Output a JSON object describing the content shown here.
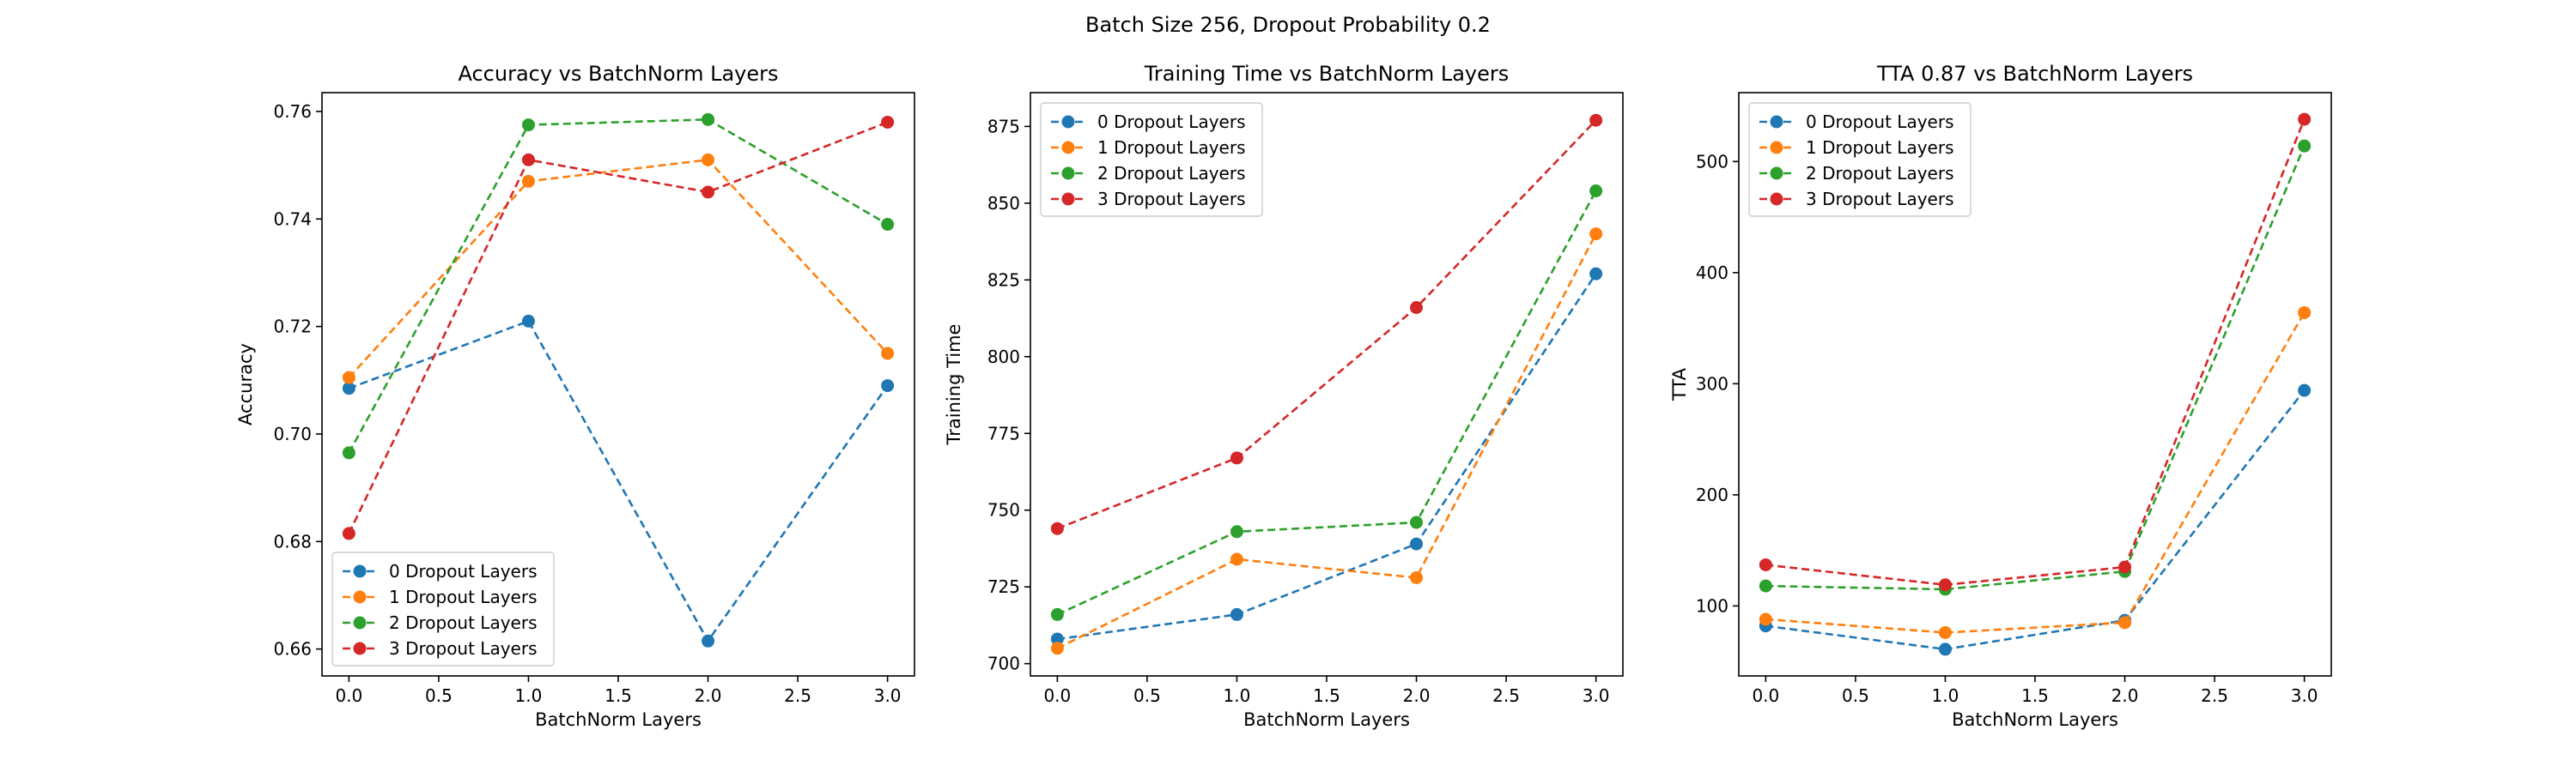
{
  "figure": {
    "suptitle": "Batch Size 256, Dropout Probability 0.2"
  },
  "series_colors": [
    "#1f77b4",
    "#ff7f0e",
    "#2ca02c",
    "#d62728"
  ],
  "chart_data": [
    {
      "type": "line",
      "title": "Accuracy vs BatchNorm Layers",
      "xlabel": "BatchNorm Layers",
      "ylabel": "Accuracy",
      "x": [
        0.0,
        1.0,
        2.0,
        3.0
      ],
      "xlim": [
        -0.15,
        3.15
      ],
      "ylim": [
        0.655,
        0.7635
      ],
      "xticks": [
        0.0,
        0.5,
        1.0,
        1.5,
        2.0,
        2.5,
        3.0
      ],
      "xtick_labels": [
        "0.0",
        "0.5",
        "1.0",
        "1.5",
        "2.0",
        "2.5",
        "3.0"
      ],
      "yticks": [
        0.66,
        0.68,
        0.7,
        0.72,
        0.74,
        0.76
      ],
      "ytick_labels": [
        "0.66",
        "0.68",
        "0.70",
        "0.72",
        "0.74",
        "0.76"
      ],
      "grid": false,
      "legend_position": "lower-left",
      "series": [
        {
          "name": "0 Dropout Layers",
          "values": [
            0.7085,
            0.721,
            0.6615,
            0.709
          ]
        },
        {
          "name": "1 Dropout Layers",
          "values": [
            0.7105,
            0.747,
            0.751,
            0.715
          ]
        },
        {
          "name": "2 Dropout Layers",
          "values": [
            0.6965,
            0.7575,
            0.7585,
            0.739
          ]
        },
        {
          "name": "3 Dropout Layers",
          "values": [
            0.6815,
            0.751,
            0.745,
            0.758
          ]
        }
      ]
    },
    {
      "type": "line",
      "title": "Training Time vs BatchNorm Layers",
      "xlabel": "BatchNorm Layers",
      "ylabel": "Training Time",
      "x": [
        0.0,
        1.0,
        2.0,
        3.0
      ],
      "xlim": [
        -0.15,
        3.15
      ],
      "ylim": [
        696,
        886
      ],
      "xticks": [
        0.0,
        0.5,
        1.0,
        1.5,
        2.0,
        2.5,
        3.0
      ],
      "xtick_labels": [
        "0.0",
        "0.5",
        "1.0",
        "1.5",
        "2.0",
        "2.5",
        "3.0"
      ],
      "yticks": [
        700,
        725,
        750,
        775,
        800,
        825,
        850,
        875
      ],
      "ytick_labels": [
        "700",
        "725",
        "750",
        "775",
        "800",
        "825",
        "850",
        "875"
      ],
      "grid": false,
      "legend_position": "upper-left",
      "series": [
        {
          "name": "0 Dropout Layers",
          "values": [
            708,
            716,
            739,
            827
          ]
        },
        {
          "name": "1 Dropout Layers",
          "values": [
            705,
            734,
            728,
            840
          ]
        },
        {
          "name": "2 Dropout Layers",
          "values": [
            716,
            743,
            746,
            854
          ]
        },
        {
          "name": "3 Dropout Layers",
          "values": [
            744,
            767,
            816,
            877
          ]
        }
      ]
    },
    {
      "type": "line",
      "title": "TTA 0.87 vs BatchNorm Layers",
      "xlabel": "BatchNorm Layers",
      "ylabel": "TTA",
      "x": [
        0.0,
        1.0,
        2.0,
        3.0
      ],
      "xlim": [
        -0.15,
        3.15
      ],
      "ylim": [
        37,
        562
      ],
      "xticks": [
        0.0,
        0.5,
        1.0,
        1.5,
        2.0,
        2.5,
        3.0
      ],
      "xtick_labels": [
        "0.0",
        "0.5",
        "1.0",
        "1.5",
        "2.0",
        "2.5",
        "3.0"
      ],
      "yticks": [
        100,
        200,
        300,
        400,
        500
      ],
      "ytick_labels": [
        "100",
        "200",
        "300",
        "400",
        "500"
      ],
      "grid": false,
      "legend_position": "upper-left",
      "series": [
        {
          "name": "0 Dropout Layers",
          "values": [
            82,
            61,
            87,
            294
          ]
        },
        {
          "name": "1 Dropout Layers",
          "values": [
            88,
            76,
            85,
            364
          ]
        },
        {
          "name": "2 Dropout Layers",
          "values": [
            118,
            115,
            131,
            514
          ]
        },
        {
          "name": "3 Dropout Layers",
          "values": [
            137,
            119,
            135,
            538
          ]
        }
      ]
    }
  ]
}
